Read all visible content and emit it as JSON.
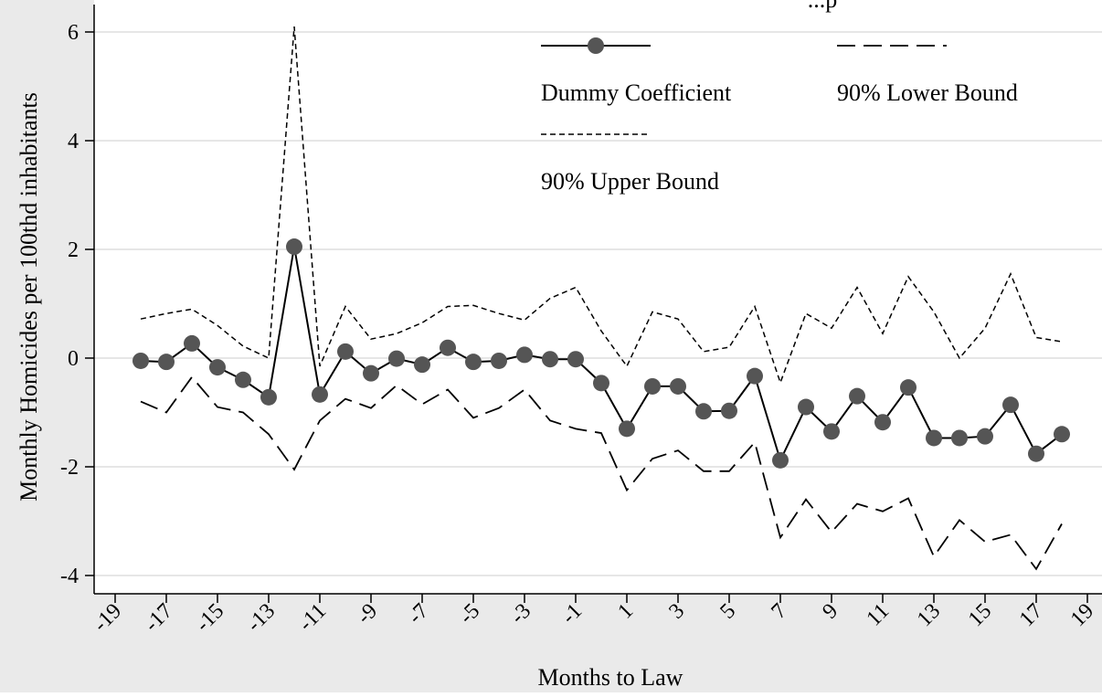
{
  "chart_data": {
    "type": "line",
    "title": "...p",
    "xlabel": "Months to Law",
    "ylabel": "Monthly Homicides per 100thd inhabitants",
    "xlim": [
      -19,
      19
    ],
    "ylim": [
      -4.3,
      6.5
    ],
    "x_ticks": [
      -19,
      -17,
      -15,
      -13,
      -11,
      -9,
      -7,
      -5,
      -3,
      -1,
      1,
      3,
      5,
      7,
      9,
      11,
      13,
      15,
      17,
      19
    ],
    "x_tick_labels": [
      "-19",
      "-17",
      "-15",
      "-13",
      "-11",
      "-9",
      "-7",
      "-5",
      "-3",
      "-1",
      "1",
      "3",
      "5",
      "7",
      "9",
      "11",
      "13",
      "15",
      "17",
      "19"
    ],
    "y_ticks": [
      -4,
      -2,
      0,
      2,
      4,
      6
    ],
    "y_tick_labels": [
      "-4",
      "-2",
      "0",
      "2",
      "4",
      "6"
    ],
    "grid": true,
    "legend_position": "top-right",
    "x": [
      -18,
      -17,
      -16,
      -15,
      -14,
      -13,
      -12,
      -11,
      -10,
      -9,
      -8,
      -7,
      -6,
      -5,
      -4,
      -3,
      -2,
      -1,
      0,
      1,
      2,
      3,
      4,
      5,
      6,
      7,
      8,
      9,
      10,
      11,
      12,
      13,
      14,
      15,
      16,
      17,
      18
    ],
    "series": [
      {
        "name": "Dummy Coefficient",
        "style": "solid-markers",
        "color": "#555555",
        "values": [
          -0.05,
          -0.07,
          0.27,
          -0.17,
          -0.4,
          -0.72,
          2.05,
          -0.67,
          0.12,
          -0.28,
          -0.01,
          -0.12,
          0.19,
          -0.07,
          -0.05,
          0.06,
          -0.02,
          -0.02,
          -0.46,
          -1.3,
          -0.52,
          -0.52,
          -0.98,
          -0.97,
          -0.33,
          -1.88,
          -0.9,
          -1.35,
          -0.7,
          -1.18,
          -0.54,
          -1.47,
          -1.47,
          -1.44,
          -0.86,
          -1.76,
          -1.4
        ]
      },
      {
        "name": "90% Lower Bound",
        "style": "long-dash",
        "color": "#000000",
        "values": [
          -0.8,
          -1.0,
          -0.35,
          -0.9,
          -1.0,
          -1.4,
          -2.05,
          -1.15,
          -0.75,
          -0.92,
          -0.5,
          -0.85,
          -0.58,
          -1.1,
          -0.92,
          -0.58,
          -1.15,
          -1.3,
          -1.38,
          -2.43,
          -1.85,
          -1.7,
          -2.08,
          -2.08,
          -1.55,
          -3.3,
          -2.6,
          -3.2,
          -2.68,
          -2.82,
          -2.58,
          -3.65,
          -2.98,
          -3.38,
          -3.25,
          -3.88,
          -3.05
        ]
      },
      {
        "name": "90% Upper Bound",
        "style": "short-dash",
        "color": "#000000",
        "values": [
          0.72,
          0.82,
          0.9,
          0.6,
          0.22,
          0.0,
          6.1,
          -0.15,
          0.95,
          0.35,
          0.45,
          0.65,
          0.95,
          0.97,
          0.82,
          0.7,
          1.1,
          1.3,
          0.5,
          -0.15,
          0.85,
          0.72,
          0.12,
          0.2,
          0.95,
          -0.45,
          0.82,
          0.55,
          1.3,
          0.45,
          1.5,
          0.85,
          0.0,
          0.55,
          1.55,
          0.38,
          0.3
        ]
      }
    ]
  }
}
